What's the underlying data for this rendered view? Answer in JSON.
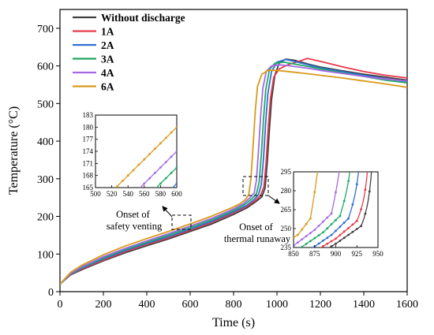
{
  "chart_data": {
    "type": "line",
    "xlabel": "Time (s)",
    "ylabel": "Temperature (°C)",
    "xlim": [
      0,
      1600
    ],
    "ylim": [
      0,
      750
    ],
    "xticks": [
      0,
      200,
      400,
      600,
      800,
      1000,
      1200,
      1400,
      1600
    ],
    "yticks": [
      0,
      100,
      200,
      300,
      400,
      500,
      600,
      700
    ],
    "legend_position": "top-left",
    "series": [
      {
        "name": "Without discharge",
        "color": "#404040",
        "x": [
          0,
          50,
          100,
          200,
          300,
          400,
          500,
          600,
          700,
          800,
          860,
          900,
          930,
          945,
          955,
          965,
          975,
          990,
          1010,
          1040,
          1080,
          1150,
          1200,
          1300,
          1400,
          1500,
          1600
        ],
        "y": [
          20,
          45,
          58,
          82,
          103,
          122,
          140,
          160,
          180,
          205,
          222,
          238,
          252,
          275,
          340,
          430,
          510,
          575,
          608,
          618,
          615,
          604,
          597,
          587,
          578,
          570,
          562
        ]
      },
      {
        "name": "1A",
        "color": "#e8394a",
        "x": [
          0,
          50,
          100,
          200,
          300,
          400,
          500,
          600,
          700,
          800,
          860,
          900,
          925,
          940,
          950,
          960,
          970,
          985,
          1010,
          1050,
          1100,
          1140,
          1200,
          1300,
          1400,
          1500,
          1600
        ],
        "y": [
          20,
          46,
          60,
          84,
          106,
          125,
          143,
          163,
          184,
          209,
          226,
          242,
          256,
          280,
          345,
          440,
          515,
          570,
          592,
          603,
          612,
          620,
          612,
          598,
          585,
          575,
          568
        ]
      },
      {
        "name": "2A",
        "color": "#2e6fcf",
        "x": [
          0,
          50,
          100,
          200,
          300,
          400,
          500,
          600,
          700,
          800,
          860,
          895,
          915,
          928,
          938,
          948,
          958,
          975,
          1000,
          1040,
          1080,
          1150,
          1200,
          1300,
          1400,
          1500,
          1600
        ],
        "y": [
          20,
          47,
          62,
          87,
          109,
          128,
          146,
          166,
          187,
          212,
          229,
          245,
          258,
          285,
          355,
          450,
          525,
          585,
          610,
          617,
          612,
          602,
          595,
          585,
          575,
          566,
          558
        ]
      },
      {
        "name": "3A",
        "color": "#1fa866",
        "x": [
          0,
          50,
          100,
          200,
          300,
          400,
          500,
          600,
          700,
          800,
          850,
          885,
          905,
          918,
          928,
          938,
          948,
          965,
          990,
          1030,
          1080,
          1150,
          1200,
          1300,
          1400,
          1500,
          1600
        ],
        "y": [
          20,
          48,
          64,
          90,
          112,
          131,
          150,
          170,
          191,
          216,
          231,
          247,
          260,
          290,
          365,
          460,
          535,
          590,
          607,
          610,
          605,
          598,
          592,
          582,
          572,
          562,
          555
        ]
      },
      {
        "name": "4A",
        "color": "#a569e3",
        "x": [
          0,
          50,
          100,
          200,
          300,
          400,
          500,
          600,
          700,
          800,
          845,
          875,
          895,
          905,
          915,
          925,
          935,
          950,
          975,
          1010,
          1060,
          1150,
          1200,
          1300,
          1400,
          1500,
          1600
        ],
        "y": [
          20,
          49,
          66,
          93,
          115,
          135,
          154,
          174,
          195,
          220,
          234,
          249,
          262,
          295,
          375,
          470,
          540,
          585,
          600,
          603,
          600,
          593,
          588,
          580,
          572,
          565,
          560
        ]
      },
      {
        "name": "6A",
        "color": "#d99a1a",
        "x": [
          0,
          50,
          100,
          200,
          300,
          400,
          500,
          600,
          700,
          800,
          830,
          855,
          870,
          880,
          890,
          900,
          910,
          930,
          960,
          1000,
          1050,
          1100,
          1200,
          1300,
          1400,
          1500,
          1600
        ],
        "y": [
          20,
          52,
          70,
          98,
          121,
          141,
          160,
          180,
          201,
          225,
          234,
          245,
          258,
          300,
          390,
          480,
          545,
          578,
          588,
          588,
          585,
          582,
          575,
          568,
          560,
          552,
          543
        ]
      }
    ],
    "annotations": [
      {
        "text_lines": [
          "Onset of",
          "safety venting"
        ]
      },
      {
        "text_lines": [
          "Onset of",
          "thermal runaway"
        ]
      }
    ],
    "insets": [
      {
        "name": "safety-venting-inset",
        "xlim": [
          500,
          600
        ],
        "ylim": [
          165,
          183
        ],
        "xticks": [
          500,
          520,
          540,
          560,
          580,
          600
        ],
        "yticks": [
          165,
          168,
          171,
          174,
          177,
          180,
          183
        ]
      },
      {
        "name": "thermal-runaway-inset",
        "xlim": [
          850,
          950
        ],
        "ylim": [
          235,
          295
        ],
        "xticks": [
          850,
          875,
          900,
          925,
          950
        ],
        "yticks": [
          235,
          250,
          265,
          280,
          295
        ]
      }
    ]
  }
}
